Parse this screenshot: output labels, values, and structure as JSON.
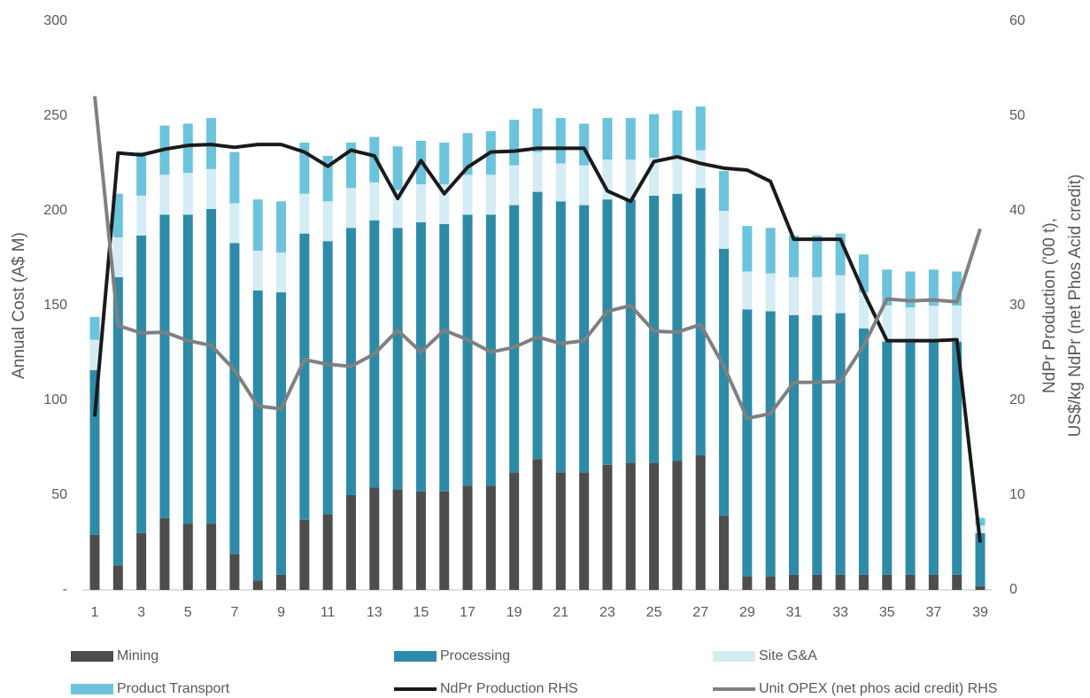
{
  "chart_data": {
    "type": "bar",
    "stacked": true,
    "ylabel": "Annual Cost (A$ M)",
    "y2label": [
      "NdPr Production ('00 t),",
      "US$/kg NdPr (net Phos Acid credit)"
    ],
    "categories": [
      "1",
      null,
      "3",
      null,
      "5",
      null,
      "7",
      null,
      "9",
      null,
      "11",
      null,
      "13",
      null,
      "15",
      null,
      "17",
      null,
      "19",
      null,
      "21",
      null,
      "23",
      null,
      "25",
      null,
      "27",
      null,
      "29",
      null,
      "31",
      null,
      "33",
      null,
      "35",
      null,
      "37",
      null,
      "39"
    ],
    "ylim": [
      0,
      300
    ],
    "yticks": [
      {
        "value": 0,
        "label": "-"
      },
      50,
      100,
      150,
      200,
      250,
      300
    ],
    "y2lim": [
      0,
      60
    ],
    "y2ticks": [
      0,
      10,
      20,
      30,
      40,
      50,
      60
    ],
    "grid": false,
    "legend": "bottom",
    "series": [
      {
        "name": "Mining",
        "type": "bar",
        "color": "#4d4d4d",
        "values": [
          29,
          13,
          30,
          38,
          35,
          35,
          19,
          5,
          8,
          37,
          40,
          50,
          54,
          53,
          52,
          52,
          55,
          55,
          62,
          69,
          62,
          62,
          66,
          67,
          67,
          68,
          71,
          39,
          7,
          7,
          8,
          8,
          8,
          8,
          8,
          8,
          8,
          8,
          2
        ]
      },
      {
        "name": "Processing",
        "type": "bar",
        "color": "#2e8ba8",
        "values": [
          87,
          152,
          157,
          160,
          163,
          166,
          164,
          153,
          149,
          151,
          144,
          141,
          141,
          138,
          142,
          141,
          143,
          143,
          141,
          141,
          143,
          141,
          140,
          139,
          141,
          141,
          141,
          141,
          141,
          140,
          137,
          137,
          138,
          130,
          123,
          123,
          123,
          123,
          28
        ]
      },
      {
        "name": "Site G&A",
        "type": "bar",
        "color": "#d4ecf3",
        "values": [
          16,
          21,
          21,
          21,
          22,
          21,
          21,
          21,
          21,
          21,
          21,
          21,
          20,
          20,
          20,
          21,
          21,
          21,
          21,
          21,
          20,
          21,
          21,
          21,
          20,
          20,
          20,
          20,
          20,
          20,
          20,
          20,
          20,
          19,
          19,
          18,
          19,
          19,
          4
        ]
      },
      {
        "name": "Product Transport",
        "type": "bar",
        "color": "#6cc3dc",
        "values": [
          12,
          23,
          23,
          26,
          26,
          27,
          27,
          27,
          27,
          27,
          24,
          24,
          24,
          23,
          23,
          22,
          22,
          23,
          24,
          23,
          24,
          22,
          22,
          22,
          23,
          24,
          23,
          21,
          24,
          24,
          22,
          22,
          22,
          20,
          19,
          19,
          19,
          18,
          4
        ]
      },
      {
        "name": "NdPr Production RHS",
        "type": "line",
        "axis": "y2",
        "color": "#1a1a1a",
        "values": [
          18.3,
          46.1,
          45.9,
          46.5,
          46.9,
          47.0,
          46.7,
          47.0,
          47.0,
          46.2,
          44.7,
          46.4,
          45.8,
          41.3,
          45.3,
          41.8,
          44.6,
          46.2,
          46.3,
          46.6,
          46.6,
          46.6,
          42.1,
          41.0,
          45.2,
          45.7,
          45.0,
          44.5,
          44.3,
          43.1,
          37.0,
          37.0,
          37.0,
          31.4,
          26.3,
          26.3,
          26.3,
          26.4,
          5.0
        ]
      },
      {
        "name": "Unit OPEX (net phos acid credit) RHS",
        "type": "line",
        "axis": "y2",
        "color": "#808080",
        "values": [
          52.1,
          27.9,
          27.1,
          27.2,
          26.3,
          25.8,
          23.2,
          19.4,
          19.1,
          24.3,
          23.8,
          23.6,
          24.9,
          27.4,
          25.1,
          27.4,
          26.4,
          25.1,
          25.6,
          26.7,
          26.0,
          26.3,
          29.4,
          30.0,
          27.3,
          27.2,
          28.0,
          23.6,
          18.1,
          18.6,
          21.9,
          21.9,
          22.0,
          25.8,
          30.7,
          30.5,
          30.6,
          30.4,
          38.1
        ]
      }
    ]
  }
}
